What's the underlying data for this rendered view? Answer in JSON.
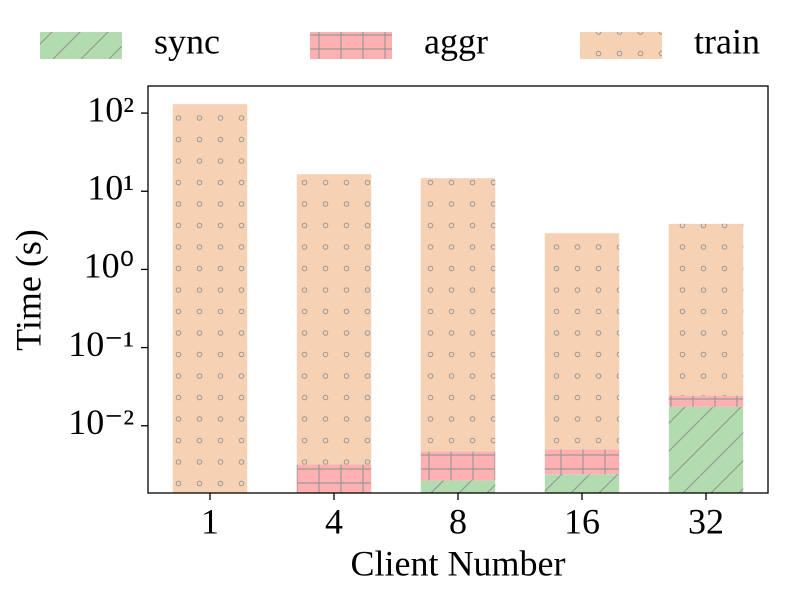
{
  "chart_data": {
    "type": "bar",
    "stacked": true,
    "log_y": true,
    "xlabel": "Client Number",
    "ylabel": "Time (s)",
    "categories": [
      "1",
      "4",
      "8",
      "16",
      "32"
    ],
    "series": [
      {
        "name": "sync",
        "color": "#b2dcb0",
        "pattern": "hatch",
        "values": [
          0,
          0,
          0.002,
          0.0024,
          0.0175
        ]
      },
      {
        "name": "aggr",
        "color": "#ffb0b0",
        "pattern": "grid",
        "values": [
          0,
          0.0032,
          0.0027,
          0.0026,
          0.0068
        ]
      },
      {
        "name": "train",
        "color": "#f6d1b3",
        "pattern": "dots",
        "values": [
          130,
          16.5,
          14.7,
          2.9,
          3.8
        ]
      }
    ],
    "ylim": [
      0.00138,
      222
    ],
    "yticks": [
      {
        "value": 0.01,
        "label": "10⁻²"
      },
      {
        "value": 0.1,
        "label": "10⁻¹"
      },
      {
        "value": 1,
        "label": "10⁰"
      },
      {
        "value": 10,
        "label": "10¹"
      },
      {
        "value": 100,
        "label": "10²"
      }
    ],
    "legend": "top"
  }
}
